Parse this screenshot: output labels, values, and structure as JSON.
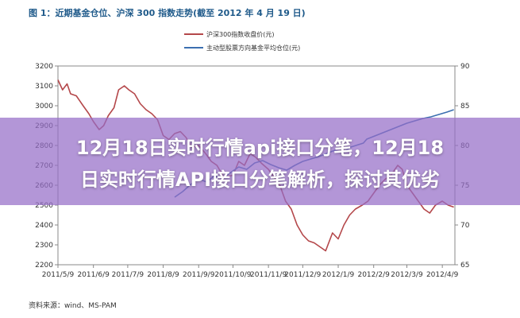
{
  "figure_title": "图 1：近期基金仓位、沪深 300 指数走势(截至 2012 年 4 月 19 日)",
  "source_note": "资料来源：wind、MS-PAM",
  "banner": {
    "line1": "12月18日实时行情api接口分笔，12月18",
    "line2": "日实时行情API接口分笔解析，探讨其优劣"
  },
  "colors": {
    "series_index": "#b4474a",
    "series_position": "#3b6fb0",
    "axis": "#888888",
    "banner": "#966ec8"
  },
  "chart_data": {
    "type": "line",
    "title": "",
    "xlabel": "",
    "ylabel": "",
    "ylim": [
      2200,
      3200
    ],
    "y2lim": [
      65,
      90
    ],
    "y_ticks": [
      "2200",
      "2300",
      "2400",
      "2500",
      "2600",
      "2700",
      "2800",
      "2900",
      "3000",
      "3100",
      "3200"
    ],
    "y2_ticks": [
      "65",
      "70",
      "75",
      "80",
      "85",
      "90"
    ],
    "x_ticks": [
      "2011/5/9",
      "2011/6/9",
      "2011/7/9",
      "2011/8/9",
      "2011/9/9",
      "2011/10/9",
      "2011/11/9",
      "2011/12/9",
      "2012/1/9",
      "2012/2/9",
      "2012/3/9",
      "2012/4/9"
    ],
    "legend_position": "top-center",
    "grid": false,
    "series": [
      {
        "name": "沪深300指数收盘价(元)",
        "axis": "left",
        "x": [
          "2011/5/9",
          "2011/5/13",
          "2011/5/17",
          "2011/5/20",
          "2011/5/25",
          "2011/5/31",
          "2011/6/5",
          "2011/6/9",
          "2011/6/14",
          "2011/6/18",
          "2011/6/22",
          "2011/6/27",
          "2011/7/1",
          "2011/7/6",
          "2011/7/10",
          "2011/7/15",
          "2011/7/20",
          "2011/7/25",
          "2011/7/30",
          "2011/8/4",
          "2011/8/9",
          "2011/8/14",
          "2011/8/19",
          "2011/8/24",
          "2011/8/29",
          "2011/9/3",
          "2011/9/9",
          "2011/9/15",
          "2011/9/20",
          "2011/9/25",
          "2011/10/1",
          "2011/10/9",
          "2011/10/14",
          "2011/10/19",
          "2011/10/24",
          "2011/10/29",
          "2011/11/3",
          "2011/11/9",
          "2011/11/14",
          "2011/11/19",
          "2011/11/24",
          "2011/11/29",
          "2011/12/4",
          "2011/12/9",
          "2011/12/14",
          "2011/12/19",
          "2011/12/24",
          "2011/12/29",
          "2012/1/4",
          "2012/1/9",
          "2012/1/14",
          "2012/1/19",
          "2012/1/24",
          "2012/1/30",
          "2012/2/4",
          "2012/2/9",
          "2012/2/14",
          "2012/2/19",
          "2012/2/24",
          "2012/3/1",
          "2012/3/5",
          "2012/3/9",
          "2012/3/14",
          "2012/3/19",
          "2012/3/24",
          "2012/3/29",
          "2012/4/3",
          "2012/4/9",
          "2012/4/14",
          "2012/4/19"
        ],
        "values": [
          3130,
          3080,
          3110,
          3060,
          3050,
          3000,
          2960,
          2920,
          2880,
          2900,
          2950,
          2990,
          3080,
          3100,
          3080,
          3060,
          3010,
          2980,
          2960,
          2930,
          2850,
          2830,
          2860,
          2870,
          2840,
          2790,
          2800,
          2760,
          2720,
          2700,
          2640,
          2650,
          2720,
          2700,
          2760,
          2740,
          2710,
          2680,
          2640,
          2600,
          2520,
          2480,
          2400,
          2350,
          2320,
          2310,
          2290,
          2270,
          2360,
          2330,
          2400,
          2450,
          2480,
          2500,
          2520,
          2560,
          2600,
          2630,
          2650,
          2700,
          2680,
          2600,
          2560,
          2520,
          2480,
          2460,
          2500,
          2520,
          2500,
          2490
        ]
      },
      {
        "name": "主动型股票方向基金平均仓位(元)",
        "axis": "right",
        "x": [
          "2011/8/19",
          "2011/8/26",
          "2011/9/2",
          "2011/9/9",
          "2011/9/16",
          "2011/9/23",
          "2011/9/30",
          "2011/10/9",
          "2011/10/14",
          "2011/10/21",
          "2011/10/28",
          "2011/11/4",
          "2011/11/11",
          "2011/11/18",
          "2011/11/25",
          "2011/12/2",
          "2011/12/9",
          "2011/12/16",
          "2011/12/23",
          "2011/12/30",
          "2012/1/6",
          "2012/1/13",
          "2012/1/20",
          "2012/1/31",
          "2012/2/3",
          "2012/2/10",
          "2012/2/17",
          "2012/2/24",
          "2012/3/2",
          "2012/3/9",
          "2012/3/16",
          "2012/3/23",
          "2012/3/30",
          "2012/4/6",
          "2012/4/13",
          "2012/4/19"
        ],
        "values": [
          73.5,
          74.2,
          75.1,
          75.8,
          75.4,
          76.2,
          75.9,
          76.8,
          77.3,
          77.0,
          77.8,
          78.1,
          77.6,
          77.2,
          76.9,
          77.5,
          78.0,
          78.3,
          78.6,
          79.0,
          79.4,
          79.1,
          79.8,
          80.3,
          80.8,
          81.2,
          81.6,
          82.0,
          82.4,
          82.8,
          83.1,
          83.4,
          83.6,
          83.9,
          84.2,
          84.5
        ]
      }
    ]
  }
}
